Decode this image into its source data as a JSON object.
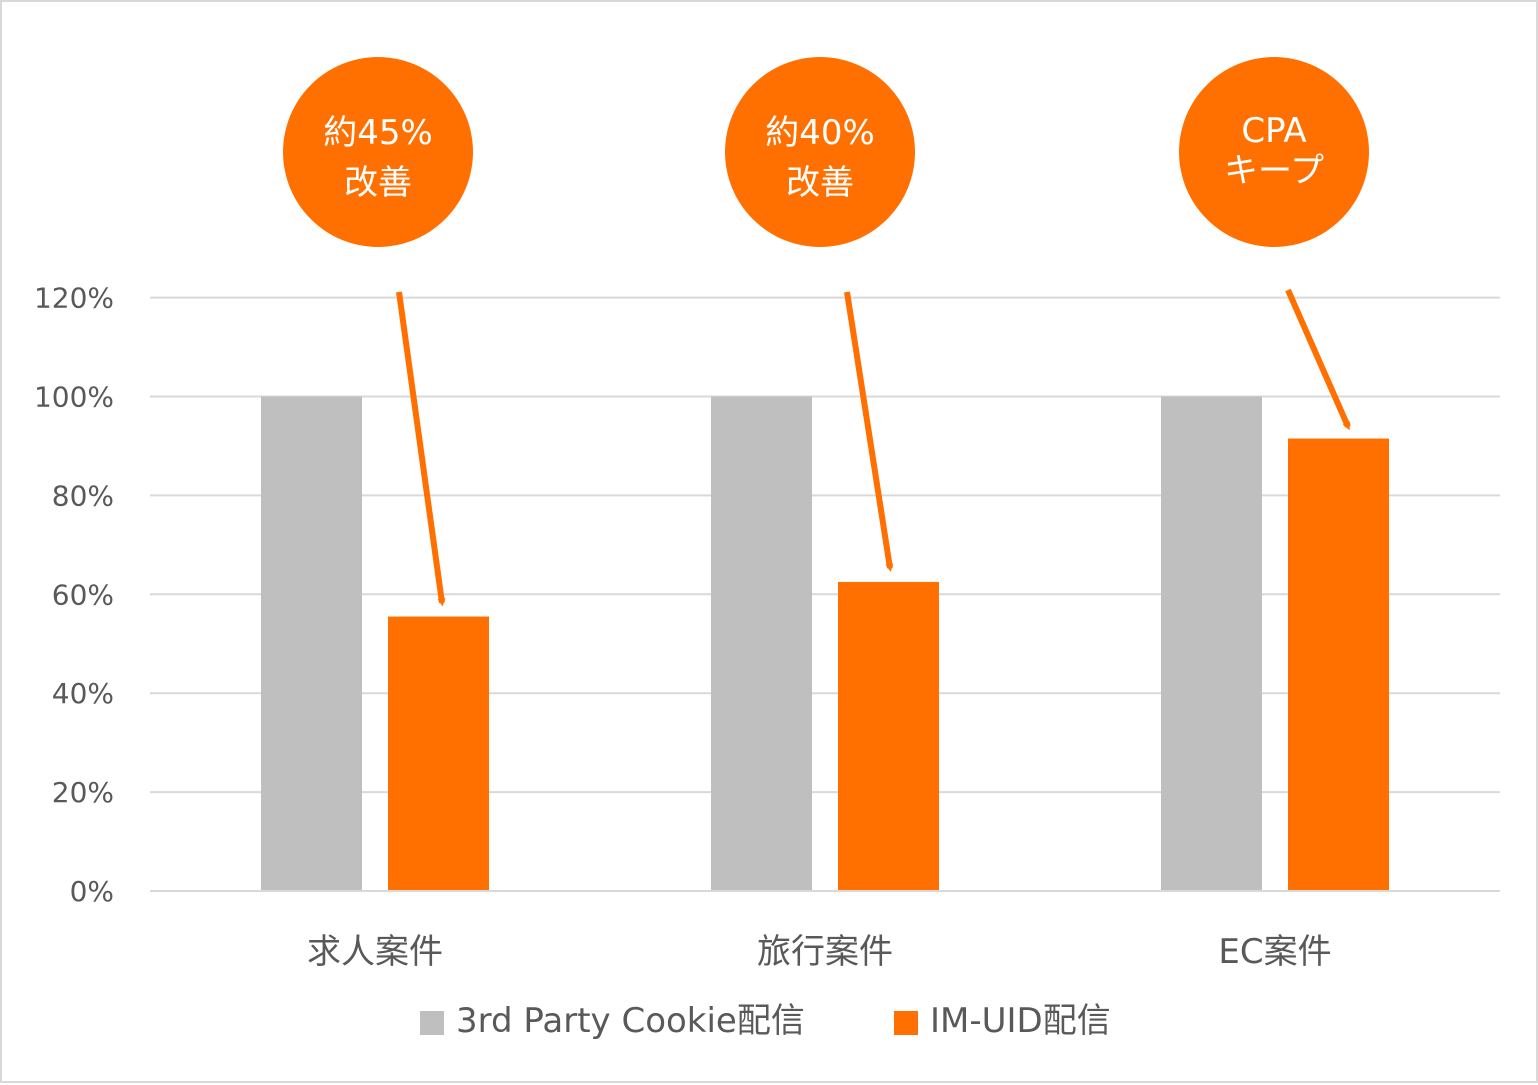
{
  "chart_data": {
    "type": "bar",
    "categories": [
      "求人案件",
      "旅行案件",
      "EC案件"
    ],
    "series": [
      {
        "name": "3rd Party Cookie配信",
        "values": [
          100,
          100,
          100
        ],
        "color": "#bfbfbf"
      },
      {
        "name": "IM-UID配信",
        "values": [
          55.5,
          62.5,
          91.5
        ],
        "color": "#ff7000"
      }
    ],
    "ylim": [
      0,
      120
    ],
    "yticks": [
      0,
      20,
      40,
      60,
      80,
      100,
      120
    ],
    "ytick_labels": [
      "0%",
      "20%",
      "40%",
      "60%",
      "80%",
      "100%",
      "120%"
    ],
    "grid": true,
    "legend_position": "bottom",
    "annotations": [
      {
        "category": "求人案件",
        "lines": [
          "約45%",
          "改善"
        ]
      },
      {
        "category": "旅行案件",
        "lines": [
          "約40%",
          "改善"
        ]
      },
      {
        "category": "EC案件",
        "lines": [
          "CPA",
          "キープ"
        ]
      }
    ],
    "accent_color": "#ff7000",
    "grid_color": "#d9d9d9"
  }
}
